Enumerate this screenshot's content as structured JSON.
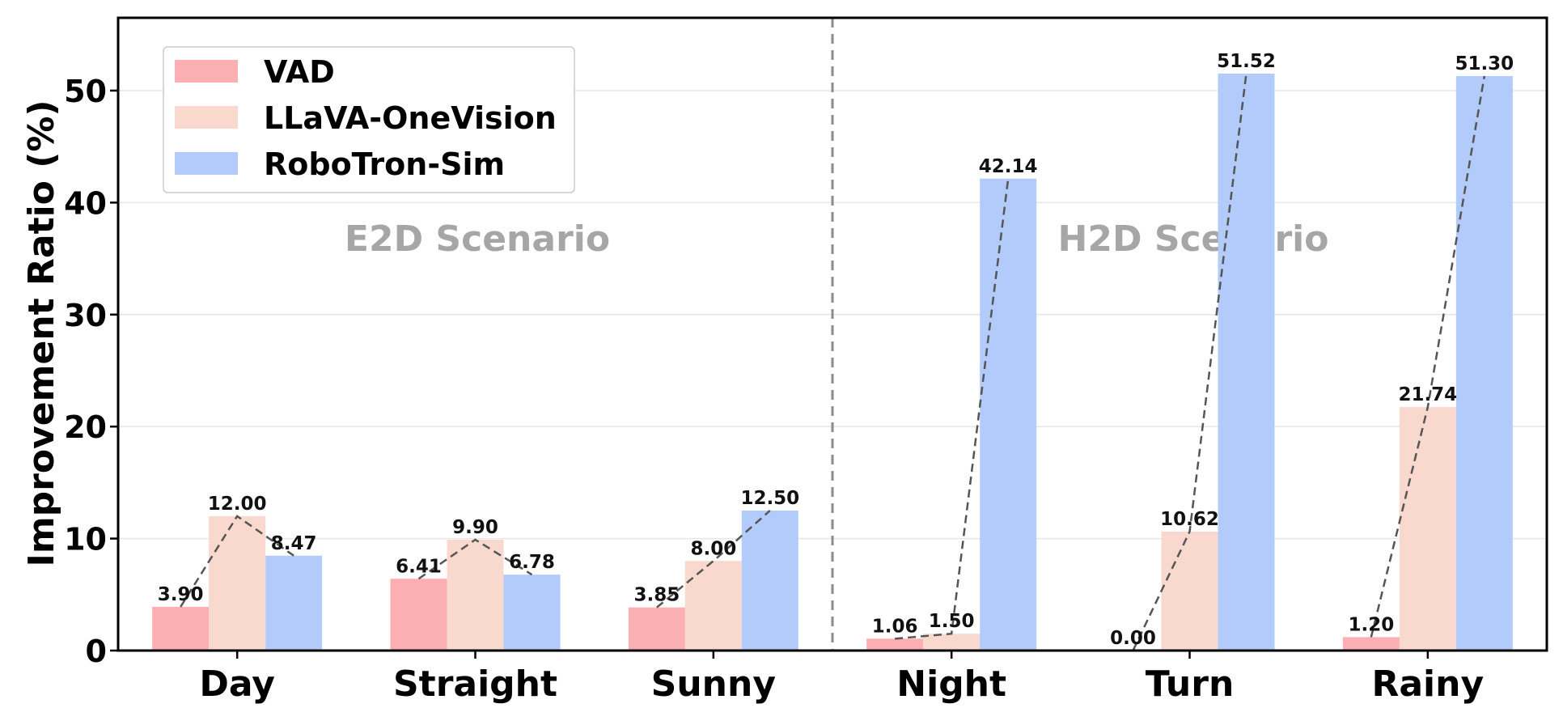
{
  "chart_data": {
    "type": "bar",
    "title": "",
    "xlabel": "",
    "ylabel": "Improvement Ratio (%)",
    "ylim": [
      0,
      56.5
    ],
    "yticks": [
      0,
      10,
      20,
      30,
      40,
      50
    ],
    "grid": "horizontal",
    "legend_position": "top-left",
    "categories": [
      "Day",
      "Straight",
      "Sunny",
      "Night",
      "Turn",
      "Rainy"
    ],
    "series": [
      {
        "name": "VAD",
        "color": "#fbafb2",
        "values": [
          3.9,
          6.41,
          3.85,
          1.06,
          0.0,
          1.2
        ],
        "labels": [
          "3.90",
          "6.41",
          "3.85",
          "1.06",
          "0.00",
          "1.20"
        ]
      },
      {
        "name": "LLaVA-OneVision",
        "color": "#f9d8cd",
        "values": [
          12.0,
          9.9,
          8.0,
          1.5,
          10.62,
          21.74
        ],
        "labels": [
          "12.00",
          "9.90",
          "8.00",
          "1.50",
          "10.62",
          "21.74"
        ]
      },
      {
        "name": "RoboTron-Sim",
        "color": "#b3cbfb",
        "values": [
          8.47,
          6.78,
          12.5,
          42.14,
          51.52,
          51.3
        ],
        "labels": [
          "8.47",
          "6.78",
          "12.50",
          "42.14",
          "51.52",
          "51.30"
        ]
      }
    ],
    "annotations": [
      {
        "text": "E2D Scenario",
        "region": "left"
      },
      {
        "text": "H2D Scenario",
        "region": "right"
      }
    ],
    "divider_after_category": 2,
    "connector_lines": "dashed"
  }
}
